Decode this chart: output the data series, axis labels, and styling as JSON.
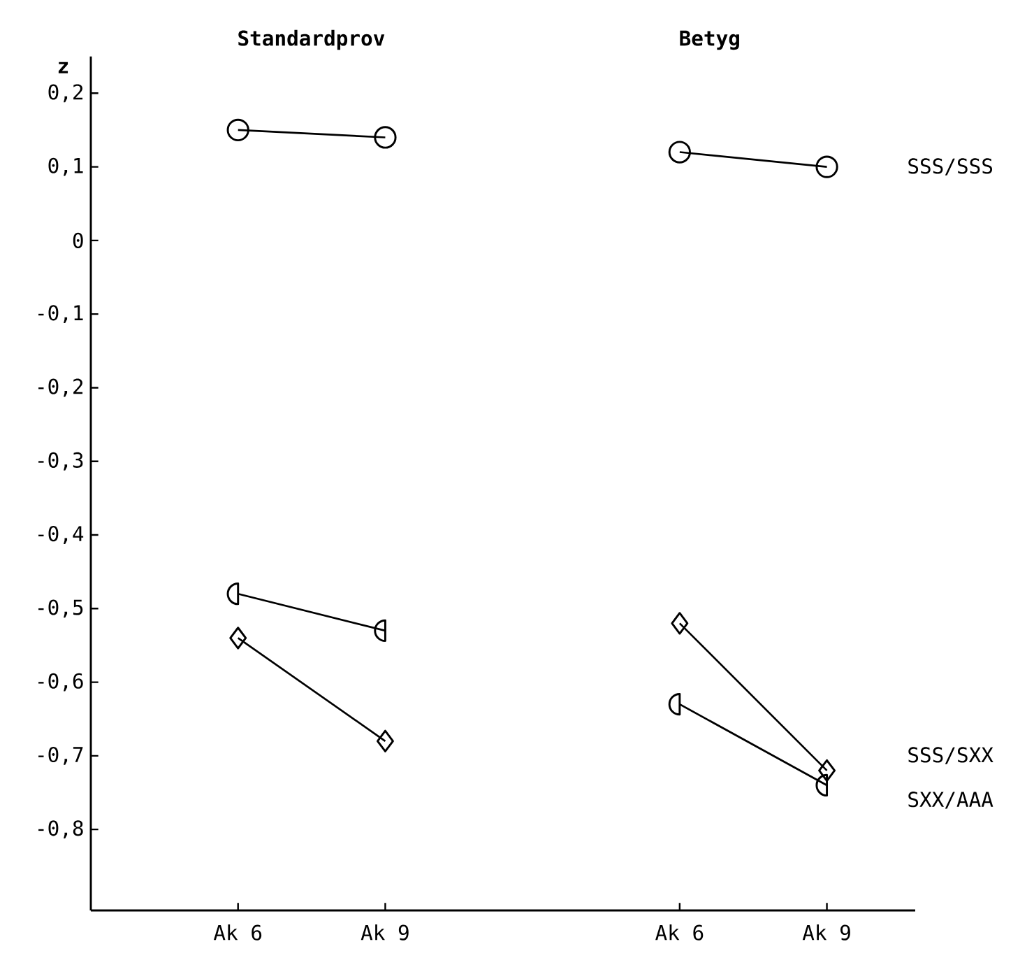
{
  "chart_data": {
    "type": "line",
    "ylabel": "z",
    "annotations": [
      "Standardprov",
      "Betyg"
    ],
    "categories": [
      "Ak 6",
      "Ak 9",
      null,
      "Ak 6",
      "Ak 9"
    ],
    "series": [
      {
        "name": "SSS/SSS",
        "color": "#000000",
        "marker": "circle",
        "values": [
          0.15,
          0.14,
          null,
          0.12,
          0.1
        ]
      },
      {
        "name": "SSS/SXX",
        "color": "#000000",
        "marker": "diamond",
        "values": [
          -0.54,
          -0.68,
          null,
          -0.52,
          -0.72
        ]
      },
      {
        "name": "SXX/AAA",
        "color": "#000000",
        "marker": "halfcircle",
        "values": [
          -0.48,
          -0.53,
          null,
          -0.63,
          -0.74
        ]
      }
    ],
    "ylim": [
      -0.91,
      0.25
    ],
    "yticks": [
      {
        "value": 0.2,
        "label": "0,2"
      },
      {
        "value": 0.1,
        "label": "0,1"
      },
      0,
      {
        "value": -0.1,
        "label": "-0,1"
      },
      {
        "value": -0.2,
        "label": "-0,2"
      },
      {
        "value": -0.3,
        "label": "-0,3"
      },
      {
        "value": -0.4,
        "label": "-0,4"
      },
      {
        "value": -0.5,
        "label": "-0,5"
      },
      {
        "value": -0.6,
        "label": "-0,6"
      },
      {
        "value": -0.7,
        "label": "-0,7"
      },
      {
        "value": -0.8,
        "label": "-0,8"
      }
    ],
    "legend": false,
    "grid": false,
    "line_style": "solid"
  }
}
